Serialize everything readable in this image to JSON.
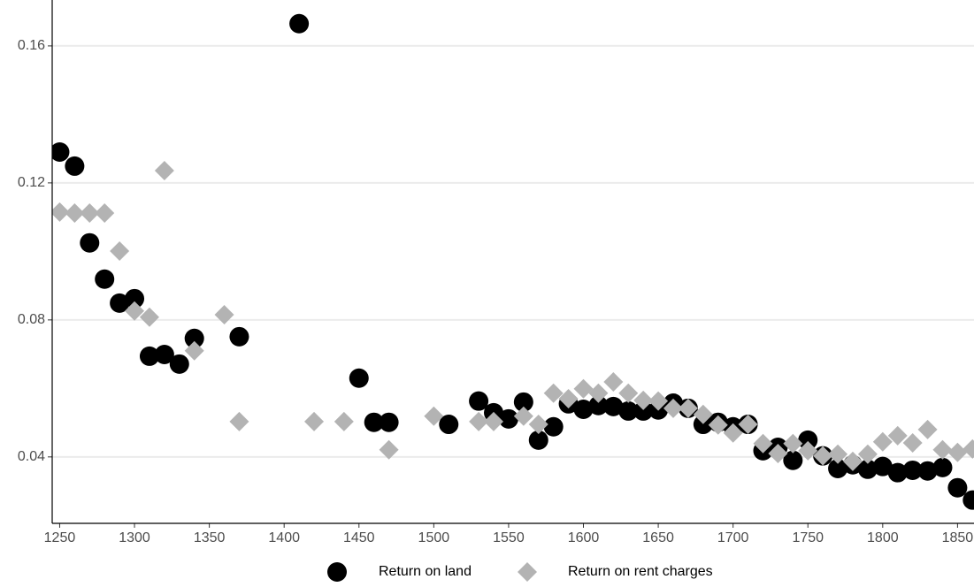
{
  "chart_data": {
    "type": "scatter",
    "xlim": [
      1245,
      1861
    ],
    "ylim": [
      0.0206,
      0.1734
    ],
    "xticks": [
      1250,
      1300,
      1350,
      1400,
      1450,
      1500,
      1550,
      1600,
      1650,
      1700,
      1750,
      1800,
      1850
    ],
    "yticks": [
      0.04,
      0.08,
      0.12,
      0.16
    ],
    "grid": true,
    "legend": "bottom",
    "series": [
      {
        "name": "Return on land",
        "color": "#000000",
        "marker": "circle",
        "x": [
          1250,
          1260,
          1270,
          1280,
          1290,
          1300,
          1310,
          1320,
          1330,
          1340,
          1370,
          1410,
          1450,
          1460,
          1470,
          1510,
          1530,
          1540,
          1550,
          1560,
          1570,
          1580,
          1590,
          1600,
          1610,
          1620,
          1630,
          1640,
          1650,
          1660,
          1670,
          1680,
          1690,
          1700,
          1710,
          1720,
          1730,
          1740,
          1750,
          1760,
          1770,
          1780,
          1790,
          1800,
          1810,
          1820,
          1830,
          1840,
          1850,
          1860
        ],
        "values": [
          0.129,
          0.1249,
          0.1025,
          0.0919,
          0.0849,
          0.0862,
          0.0694,
          0.0699,
          0.0671,
          0.0746,
          0.0751,
          0.1665,
          0.063,
          0.0501,
          0.0501,
          0.0495,
          0.0563,
          0.0529,
          0.0511,
          0.056,
          0.0449,
          0.0488,
          0.0555,
          0.0539,
          0.055,
          0.0547,
          0.0534,
          0.0534,
          0.0537,
          0.0557,
          0.0542,
          0.0495,
          0.0501,
          0.0488,
          0.0495,
          0.0418,
          0.0428,
          0.039,
          0.0449,
          0.0403,
          0.0366,
          0.0377,
          0.0364,
          0.0372,
          0.0354,
          0.0361,
          0.0359,
          0.0369,
          0.031,
          0.0274
        ]
      },
      {
        "name": "Return on rent charges",
        "color": "#b3b3b3",
        "marker": "diamond",
        "x": [
          1250,
          1260,
          1270,
          1280,
          1290,
          1300,
          1310,
          1320,
          1340,
          1360,
          1370,
          1420,
          1440,
          1470,
          1500,
          1530,
          1540,
          1560,
          1570,
          1580,
          1590,
          1600,
          1610,
          1620,
          1630,
          1640,
          1650,
          1660,
          1670,
          1680,
          1690,
          1700,
          1710,
          1720,
          1730,
          1740,
          1750,
          1760,
          1770,
          1780,
          1790,
          1800,
          1810,
          1820,
          1830,
          1840,
          1850,
          1860
        ],
        "values": [
          0.1115,
          0.1112,
          0.1112,
          0.1112,
          0.1001,
          0.0826,
          0.0808,
          0.1236,
          0.071,
          0.0815,
          0.0503,
          0.0503,
          0.0503,
          0.0421,
          0.0519,
          0.0503,
          0.0503,
          0.0519,
          0.0495,
          0.0586,
          0.057,
          0.0599,
          0.0586,
          0.0619,
          0.0586,
          0.0565,
          0.0563,
          0.0542,
          0.0542,
          0.0524,
          0.0493,
          0.047,
          0.0495,
          0.0439,
          0.041,
          0.0439,
          0.0418,
          0.0403,
          0.0408,
          0.0387,
          0.0408,
          0.0444,
          0.0462,
          0.0441,
          0.048,
          0.0421,
          0.0413,
          0.0423
        ]
      }
    ]
  }
}
